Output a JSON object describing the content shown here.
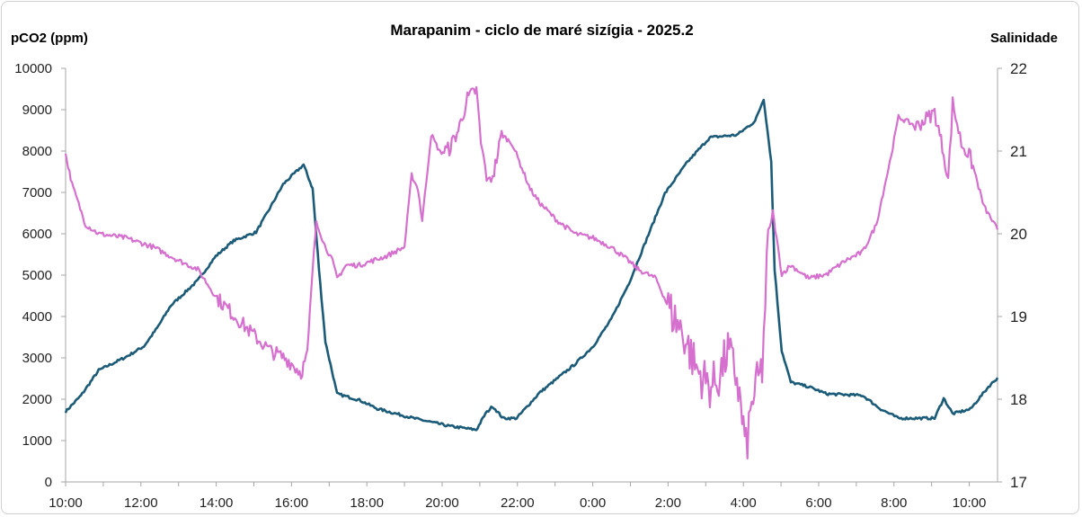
{
  "chart_data": {
    "type": "line",
    "title": "Marapanim  - ciclo de maré sizígia - 2025.2",
    "ylabel": "pCO2 (ppm)",
    "y2label": "Salinidade",
    "xlabel": "",
    "x_unit": "hours since 10:00",
    "xlim": [
      0,
      24.75
    ],
    "ylim": [
      0,
      10000
    ],
    "y2lim": [
      17,
      22
    ],
    "yticks": [
      "0",
      "1000",
      "2000",
      "3000",
      "4000",
      "5000",
      "6000",
      "7000",
      "8000",
      "9000",
      "10000"
    ],
    "y2ticks": [
      "17",
      "18",
      "19",
      "20",
      "21",
      "22"
    ],
    "xticklabels": [
      "10:00",
      "12:00",
      "14:00",
      "16:00",
      "18:00",
      "20:00",
      "22:00",
      "0:00",
      "2:00",
      "4:00",
      "6:00",
      "8:00",
      "10:00"
    ],
    "grid": false,
    "legend": "none",
    "series": [
      {
        "name": "pCO2",
        "axis": "left",
        "color": "#1b5b78",
        "points": [
          [
            0,
            1700
          ],
          [
            0.41,
            2090
          ],
          [
            0.88,
            2700
          ],
          [
            1.6,
            3020
          ],
          [
            2.08,
            3280
          ],
          [
            2.43,
            3720
          ],
          [
            2.79,
            4260
          ],
          [
            3.51,
            4870
          ],
          [
            3.99,
            5460
          ],
          [
            4.46,
            5830
          ],
          [
            5.06,
            6040
          ],
          [
            5.42,
            6610
          ],
          [
            5.78,
            7200
          ],
          [
            6.32,
            7670
          ],
          [
            6.56,
            7090
          ],
          [
            6.73,
            5130
          ],
          [
            6.9,
            3390
          ],
          [
            7.21,
            2130
          ],
          [
            7.8,
            1980
          ],
          [
            8.28,
            1770
          ],
          [
            9.24,
            1540
          ],
          [
            10.19,
            1350
          ],
          [
            10.91,
            1260
          ],
          [
            11.15,
            1650
          ],
          [
            11.34,
            1830
          ],
          [
            11.62,
            1540
          ],
          [
            11.98,
            1540
          ],
          [
            12.58,
            2150
          ],
          [
            13.53,
            2850
          ],
          [
            14.01,
            3280
          ],
          [
            14.49,
            3930
          ],
          [
            14.96,
            4800
          ],
          [
            15.44,
            5890
          ],
          [
            15.92,
            6980
          ],
          [
            16.52,
            7740
          ],
          [
            17.11,
            8330
          ],
          [
            17.83,
            8390
          ],
          [
            18.31,
            8720
          ],
          [
            18.54,
            9260
          ],
          [
            18.74,
            7740
          ],
          [
            18.83,
            5130
          ],
          [
            19.02,
            3170
          ],
          [
            19.26,
            2410
          ],
          [
            19.74,
            2300
          ],
          [
            20.21,
            2130
          ],
          [
            21.17,
            2090
          ],
          [
            21.65,
            1760
          ],
          [
            22.12,
            1540
          ],
          [
            23.08,
            1540
          ],
          [
            23.32,
            2020
          ],
          [
            23.56,
            1650
          ],
          [
            24.03,
            1760
          ],
          [
            24.51,
            2300
          ],
          [
            24.75,
            2520
          ]
        ]
      },
      {
        "name": "Salinidade",
        "axis": "right",
        "color": "#d670cf",
        "points": [
          [
            0,
            20.96
          ],
          [
            0.17,
            20.6
          ],
          [
            0.53,
            20.11
          ],
          [
            0.88,
            20.0
          ],
          [
            1.6,
            19.95
          ],
          [
            2.32,
            19.84
          ],
          [
            3.03,
            19.67
          ],
          [
            3.51,
            19.57
          ],
          [
            3.99,
            19.24
          ],
          [
            4.46,
            19.02
          ],
          [
            4.94,
            18.8
          ],
          [
            5.42,
            18.59
          ],
          [
            5.89,
            18.48
          ],
          [
            6.25,
            18.32
          ],
          [
            6.42,
            18.53
          ],
          [
            6.56,
            19.57
          ],
          [
            6.66,
            20.16
          ],
          [
            6.85,
            19.89
          ],
          [
            7.09,
            19.67
          ],
          [
            7.21,
            19.46
          ],
          [
            7.45,
            19.62
          ],
          [
            7.8,
            19.62
          ],
          [
            8.52,
            19.73
          ],
          [
            9.0,
            19.84
          ],
          [
            9.19,
            20.71
          ],
          [
            9.36,
            20.54
          ],
          [
            9.47,
            20.16
          ],
          [
            9.71,
            21.2
          ],
          [
            9.95,
            20.98
          ],
          [
            10.19,
            21.03
          ],
          [
            10.43,
            21.25
          ],
          [
            10.67,
            21.63
          ],
          [
            10.91,
            21.74
          ],
          [
            11.03,
            21.09
          ],
          [
            11.22,
            20.6
          ],
          [
            11.38,
            20.76
          ],
          [
            11.58,
            21.2
          ],
          [
            11.86,
            21.09
          ],
          [
            12.34,
            20.54
          ],
          [
            12.58,
            20.38
          ],
          [
            13.05,
            20.16
          ],
          [
            13.53,
            20.0
          ],
          [
            14.01,
            19.95
          ],
          [
            14.49,
            19.84
          ],
          [
            14.96,
            19.67
          ],
          [
            15.2,
            19.57
          ],
          [
            15.68,
            19.46
          ],
          [
            16.04,
            19.08
          ],
          [
            16.4,
            18.8
          ],
          [
            16.75,
            18.37
          ],
          [
            17.11,
            18.15
          ],
          [
            17.35,
            18.26
          ],
          [
            17.59,
            18.59
          ],
          [
            17.83,
            18.26
          ],
          [
            18.07,
            17.39
          ],
          [
            18.26,
            18.04
          ],
          [
            18.5,
            18.37
          ],
          [
            18.66,
            19.95
          ],
          [
            18.78,
            20.27
          ],
          [
            19.02,
            19.51
          ],
          [
            19.26,
            19.62
          ],
          [
            19.74,
            19.46
          ],
          [
            20.21,
            19.51
          ],
          [
            20.69,
            19.67
          ],
          [
            21.17,
            19.78
          ],
          [
            21.53,
            20.11
          ],
          [
            21.89,
            20.87
          ],
          [
            22.12,
            21.41
          ],
          [
            22.6,
            21.3
          ],
          [
            23.08,
            21.47
          ],
          [
            23.32,
            20.98
          ],
          [
            23.44,
            20.65
          ],
          [
            23.56,
            21.58
          ],
          [
            23.79,
            21.09
          ],
          [
            24.03,
            20.92
          ],
          [
            24.39,
            20.33
          ],
          [
            24.75,
            20.05
          ]
        ]
      }
    ]
  }
}
